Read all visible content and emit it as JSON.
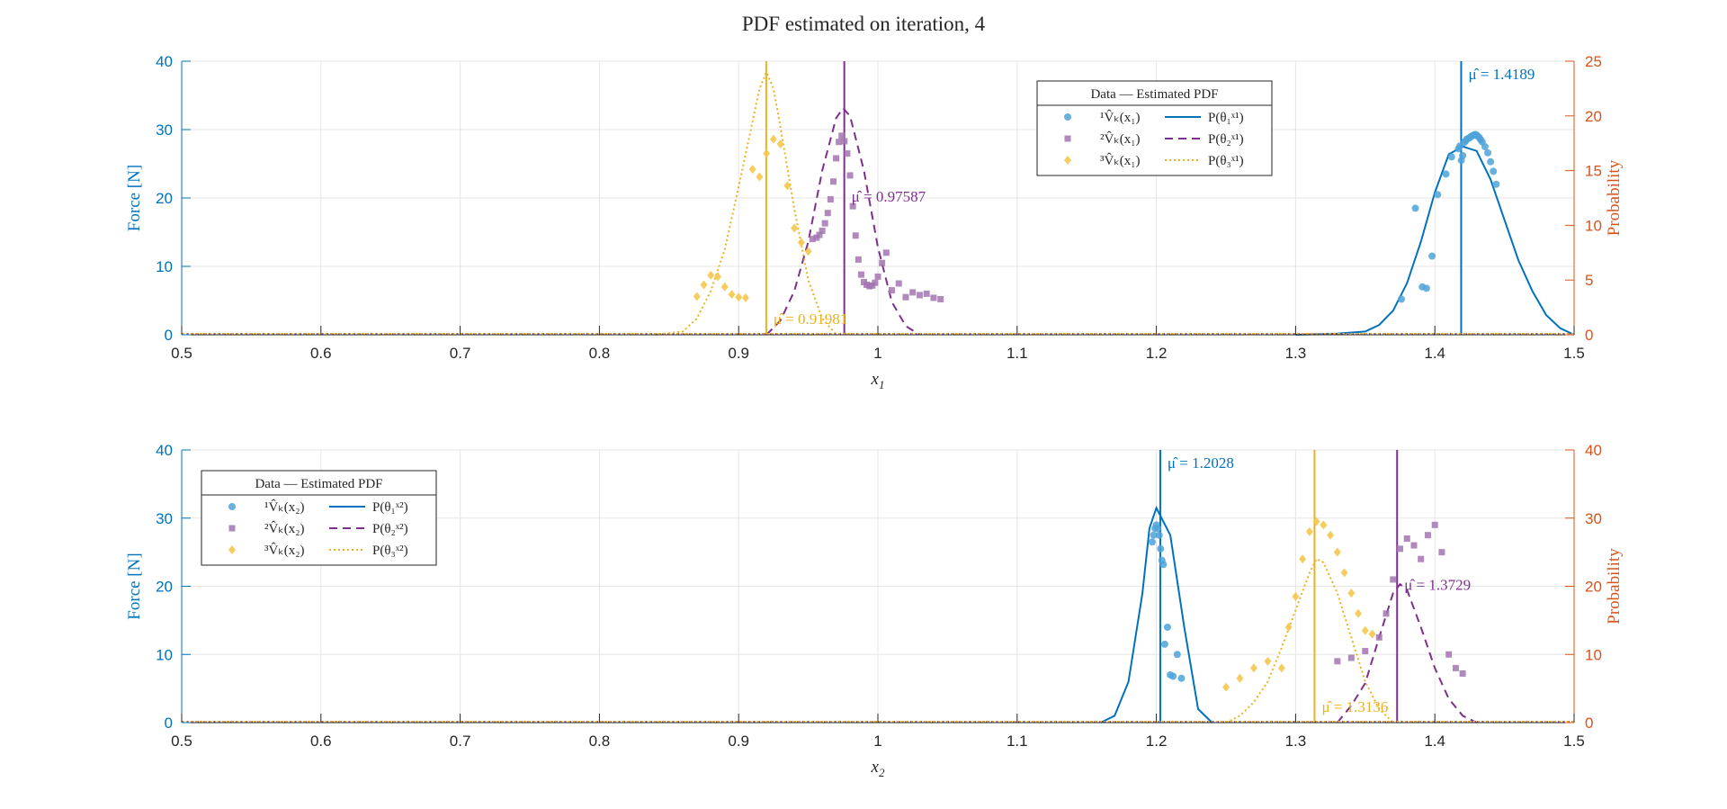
{
  "figure_title": "PDF estimated on iteration, 4",
  "colors": {
    "left_axis": "#0072BD",
    "right_axis": "#D95319",
    "series1": "#0072BD",
    "series2": "#7E2F8E",
    "series3": "#EDB120",
    "marker1": "#4DA3D9",
    "marker2": "#A374B0",
    "marker3": "#F3C84D",
    "grid": "#e6e6e6",
    "axis_text": "#262626"
  },
  "chart_data": [
    {
      "type": "scatter",
      "title": "",
      "xlabel": "x",
      "xlabel_sub": "1",
      "ylabel_left": "Force [N]",
      "ylabel_right": "Probability",
      "xlim": [
        0.5,
        1.5
      ],
      "ylim_left": [
        0,
        40
      ],
      "ylim_right": [
        0,
        25
      ],
      "x_ticks": [
        "0.5",
        "0.6",
        "0.7",
        "0.8",
        "0.9",
        "1",
        "1.1",
        "1.2",
        "1.3",
        "1.4",
        "1.5"
      ],
      "y_left_ticks": [
        "0",
        "10",
        "20",
        "30",
        "40"
      ],
      "y_right_ticks": [
        "0",
        "5",
        "10",
        "15",
        "20",
        "25"
      ],
      "grid": true,
      "legend_position": "top-center-right",
      "legend": {
        "title": "Data — Estimated PDF",
        "data_labels": [
          "¹V̂ₖ(x₁)",
          "²V̂ₖ(x₁)",
          "³V̂ₖ(x₁)"
        ],
        "pdf_labels": [
          "P(θ₁ˣ¹)",
          "P(θ₂ˣ¹)",
          "P(θ₃ˣ¹)"
        ]
      },
      "means": [
        {
          "series": 1,
          "value": 1.4189,
          "label": "μ̂ = 1.4189"
        },
        {
          "series": 2,
          "value": 0.97587,
          "label": "μ̂ = 0.97587"
        },
        {
          "series": 3,
          "value": 0.91981,
          "label": "μ̂ = 0.91981"
        }
      ],
      "pdf_curves": [
        {
          "series": 1,
          "x": [
            1.3,
            1.33,
            1.35,
            1.36,
            1.37,
            1.38,
            1.39,
            1.4,
            1.41,
            1.42,
            1.43,
            1.44,
            1.45,
            1.46,
            1.47,
            1.48,
            1.49,
            1.5
          ],
          "y": [
            0,
            0.1,
            0.3,
            0.9,
            2.2,
            4.7,
            8.5,
            13,
            16.5,
            17.2,
            16.8,
            14.2,
            10.5,
            6.8,
            4.0,
            1.8,
            0.6,
            0
          ]
        },
        {
          "series": 2,
          "x": [
            0.92,
            0.93,
            0.94,
            0.95,
            0.96,
            0.97,
            0.975,
            0.98,
            0.99,
            1.0,
            1.01,
            1.02,
            1.03
          ],
          "y": [
            0,
            1.3,
            4.0,
            8.5,
            15.0,
            19.8,
            20.7,
            20.0,
            15.0,
            8.0,
            3.0,
            0.8,
            0
          ]
        },
        {
          "series": 3,
          "x": [
            0.84,
            0.86,
            0.87,
            0.88,
            0.89,
            0.9,
            0.91,
            0.915,
            0.92,
            0.925,
            0.93,
            0.94,
            0.95,
            0.96,
            0.97
          ],
          "y": [
            0,
            0.3,
            1.5,
            4.0,
            7.8,
            13.5,
            19.5,
            22.5,
            24.0,
            22.5,
            19.0,
            11.5,
            5.0,
            1.5,
            0
          ]
        }
      ],
      "data_series": [
        {
          "series": 1,
          "x": [
            1.376,
            1.386,
            1.391,
            1.394,
            1.398,
            1.402,
            1.408,
            1.412,
            1.417,
            1.418,
            1.419,
            1.42,
            1.421,
            1.422,
            1.423,
            1.424,
            1.425,
            1.426,
            1.427,
            1.428,
            1.429,
            1.43,
            1.431,
            1.432,
            1.433,
            1.434,
            1.436,
            1.438,
            1.44,
            1.442,
            1.444
          ],
          "y": [
            5.2,
            18.5,
            7,
            6.8,
            11.5,
            20.5,
            23.5,
            26,
            27.2,
            27.6,
            25.5,
            26.2,
            28.1,
            28.3,
            28.6,
            28.7,
            28.8,
            29,
            29.1,
            29.2,
            29.3,
            29.2,
            29,
            28.8,
            28.5,
            28.2,
            27.5,
            26.6,
            25.3,
            23.9,
            22.0
          ]
        },
        {
          "series": 2,
          "x": [
            0.953,
            0.956,
            0.958,
            0.96,
            0.962,
            0.964,
            0.966,
            0.968,
            0.97,
            0.972,
            0.974,
            0.976,
            0.978,
            0.98,
            0.982,
            0.984,
            0.986,
            0.988,
            0.99,
            0.992,
            0.994,
            0.996,
            0.998,
            1.0,
            1.003,
            1.006,
            1.01,
            1.015,
            1.02,
            1.025,
            1.03,
            1.035,
            1.04,
            1.045
          ],
          "y": [
            14,
            14.2,
            14.6,
            15.2,
            16.3,
            17.8,
            19.8,
            22.4,
            25.8,
            28.2,
            29.1,
            28.3,
            26.5,
            23.3,
            18.8,
            14.5,
            11.0,
            8.8,
            7.7,
            7.3,
            7.1,
            7.2,
            7.6,
            8.5,
            10.5,
            12.0,
            6.5,
            7.5,
            5.5,
            6.2,
            5.8,
            6.0,
            5.4,
            5.2
          ]
        },
        {
          "series": 3,
          "x": [
            0.87,
            0.875,
            0.88,
            0.885,
            0.89,
            0.895,
            0.9,
            0.905,
            0.91,
            0.915,
            0.92,
            0.925,
            0.93,
            0.935,
            0.94,
            0.945,
            0.95
          ],
          "y": [
            5.6,
            7.3,
            8.7,
            8.5,
            7.0,
            5.9,
            5.5,
            5.4,
            24.2,
            23.1,
            26.5,
            28.6,
            27.9,
            21.8,
            15.6,
            13.5,
            12.2
          ]
        }
      ]
    },
    {
      "type": "scatter",
      "title": "",
      "xlabel": "x",
      "xlabel_sub": "2",
      "ylabel_left": "Force [N]",
      "ylabel_right": "Probability",
      "xlim": [
        0.5,
        1.5
      ],
      "ylim_left": [
        0,
        40
      ],
      "ylim_right": [
        0,
        40
      ],
      "x_ticks": [
        "0.5",
        "0.6",
        "0.7",
        "0.8",
        "0.9",
        "1",
        "1.1",
        "1.2",
        "1.3",
        "1.4",
        "1.5"
      ],
      "y_left_ticks": [
        "0",
        "10",
        "20",
        "30",
        "40"
      ],
      "y_right_ticks": [
        "0",
        "10",
        "20",
        "30",
        "40"
      ],
      "grid": true,
      "legend_position": "top-left",
      "legend": {
        "title": "Data — Estimated PDF",
        "data_labels": [
          "¹V̂ₖ(x₂)",
          "²V̂ₖ(x₂)",
          "³V̂ₖ(x₂)"
        ],
        "pdf_labels": [
          "P(θ₁ˣ²)",
          "P(θ₂ˣ²)",
          "P(θ₃ˣ²)"
        ]
      },
      "means": [
        {
          "series": 1,
          "value": 1.2028,
          "label": "μ̂ = 1.2028"
        },
        {
          "series": 2,
          "value": 1.3729,
          "label": "μ̂ = 1.3729"
        },
        {
          "series": 3,
          "value": 1.3136,
          "label": "μ̂ = 1.3136"
        }
      ],
      "pdf_curves": [
        {
          "series": 1,
          "x": [
            1.16,
            1.17,
            1.18,
            1.19,
            1.195,
            1.2,
            1.205,
            1.21,
            1.22,
            1.23,
            1.24
          ],
          "y": [
            0,
            1.0,
            6.0,
            19.0,
            28.5,
            31.5,
            29.5,
            27.5,
            14.0,
            2.0,
            0
          ]
        },
        {
          "series": 2,
          "x": [
            1.33,
            1.34,
            1.35,
            1.36,
            1.37,
            1.375,
            1.38,
            1.39,
            1.4,
            1.41,
            1.42,
            1.43
          ],
          "y": [
            0,
            2.5,
            5.8,
            12.5,
            19.0,
            20.3,
            19.5,
            14.0,
            8.0,
            3.5,
            1.0,
            0
          ]
        },
        {
          "series": 3,
          "x": [
            1.25,
            1.26,
            1.27,
            1.28,
            1.29,
            1.3,
            1.31,
            1.315,
            1.32,
            1.33,
            1.34,
            1.35,
            1.36,
            1.37
          ],
          "y": [
            0,
            1.0,
            3.0,
            6.0,
            11.0,
            16.5,
            22.0,
            24.0,
            23.5,
            19.0,
            12.5,
            6.0,
            2.0,
            0
          ]
        }
      ],
      "data_series": [
        {
          "series": 1,
          "x": [
            1.197,
            1.198,
            1.199,
            1.2,
            1.201,
            1.202,
            1.203,
            1.204,
            1.205,
            1.206,
            1.208,
            1.21,
            1.212,
            1.215,
            1.218
          ],
          "y": [
            26.5,
            27.5,
            28.5,
            29.0,
            28.5,
            27.5,
            25.5,
            23.8,
            23.2,
            11.5,
            14.0,
            7.0,
            6.8,
            10.0,
            6.5
          ]
        },
        {
          "series": 2,
          "x": [
            1.33,
            1.34,
            1.35,
            1.36,
            1.365,
            1.37,
            1.375,
            1.38,
            1.385,
            1.39,
            1.395,
            1.4,
            1.405,
            1.41,
            1.415,
            1.42
          ],
          "y": [
            9.0,
            9.5,
            10.5,
            12.5,
            16.0,
            21.0,
            25.5,
            27.0,
            26.0,
            24.0,
            27.5,
            29.0,
            25.0,
            10.0,
            8.0,
            7.2
          ]
        },
        {
          "series": 3,
          "x": [
            1.25,
            1.26,
            1.27,
            1.28,
            1.29,
            1.295,
            1.3,
            1.305,
            1.31,
            1.315,
            1.32,
            1.325,
            1.33,
            1.335,
            1.34,
            1.345,
            1.35,
            1.355
          ],
          "y": [
            5.2,
            6.5,
            8.0,
            9.0,
            8.0,
            14.0,
            18.5,
            24.0,
            28.0,
            29.5,
            29.0,
            27.5,
            25.0,
            22.0,
            19.0,
            16.0,
            13.5,
            13.0
          ]
        }
      ]
    }
  ]
}
